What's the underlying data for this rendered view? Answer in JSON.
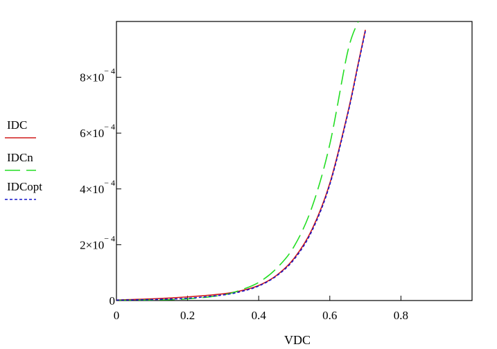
{
  "chart_data": {
    "type": "line",
    "title": "",
    "xlabel": "VDC",
    "ylabel": "",
    "xlim": [
      0,
      1
    ],
    "ylim": [
      0,
      0.001
    ],
    "grid": false,
    "legend_position": "left",
    "x_ticks": [
      {
        "value": 0,
        "label": "0"
      },
      {
        "value": 0.2,
        "label": "0.2"
      },
      {
        "value": 0.4,
        "label": "0.4"
      },
      {
        "value": 0.6,
        "label": "0.6"
      },
      {
        "value": 0.8,
        "label": "0.8"
      }
    ],
    "y_ticks": [
      {
        "value": 0,
        "mantissa": "0",
        "exponent": ""
      },
      {
        "value": 0.0002,
        "mantissa": "2×10",
        "exponent": "− 4"
      },
      {
        "value": 0.0004,
        "mantissa": "4×10",
        "exponent": "− 4"
      },
      {
        "value": 0.0006,
        "mantissa": "6×10",
        "exponent": "− 4"
      },
      {
        "value": 0.0008,
        "mantissa": "8×10",
        "exponent": "− 4"
      }
    ],
    "x": [
      0,
      0.1,
      0.2,
      0.3,
      0.35,
      0.4,
      0.45,
      0.5,
      0.55,
      0.6,
      0.65,
      0.68,
      0.7,
      0.72
    ],
    "series": [
      {
        "name": "IDC",
        "color": "#d11a1a",
        "style": "solid",
        "values": [
          2e-06,
          6e-06,
          1.3e-05,
          2.4e-05,
          3.5e-05,
          5.4e-05,
          9e-05,
          0.000152,
          0.000255,
          0.00042,
          0.00067,
          0.00085,
          0.00097,
          null
        ]
      },
      {
        "name": "IDCn",
        "color": "#22dd22",
        "style": "longdash",
        "values": [
          1e-06,
          2e-06,
          6e-06,
          2e-05,
          3.8e-05,
          6.5e-05,
          0.000115,
          0.000195,
          0.000335,
          0.00056,
          0.00089,
          0.001,
          null,
          null
        ]
      },
      {
        "name": "IDCopt",
        "color": "#1414c8",
        "style": "dotted",
        "values": [
          1.5e-06,
          3.5e-06,
          8e-06,
          2e-05,
          3.2e-05,
          5.2e-05,
          8.8e-05,
          0.000148,
          0.00025,
          0.000415,
          0.000665,
          0.000845,
          0.000965,
          null
        ]
      }
    ]
  }
}
